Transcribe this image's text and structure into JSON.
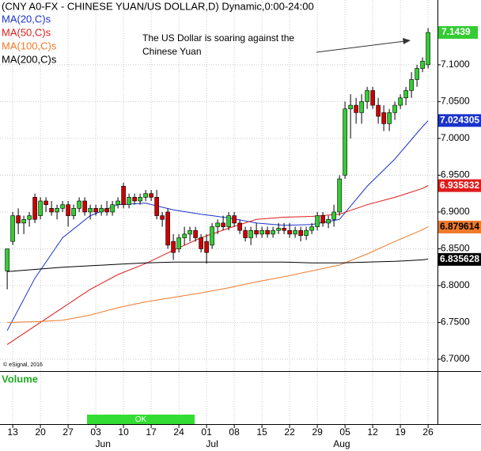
{
  "chart_data": {
    "type": "candlestick",
    "title": "(CNY A0-FX - CHINESE YUAN/US DOLLAR,D) Dynamic,0:00-24:00",
    "annotation": [
      "The US Dollar is soaring against the",
      "Chinese Yuan"
    ],
    "copyright": "© eSignal, 2016",
    "volume_label": "Volume",
    "volume_status": "OK",
    "up_color": "#33cc33",
    "down_color": "#cc0000",
    "grid": true,
    "ylim": [
      6.685,
      7.188
    ],
    "yticks": [
      {
        "value": 6.7,
        "label": "6.7000"
      },
      {
        "value": 6.75,
        "label": "6.7500"
      },
      {
        "value": 6.8,
        "label": "6.8000"
      },
      {
        "value": 6.85,
        "label": "6.8500"
      },
      {
        "value": 6.9,
        "label": "6.9000"
      },
      {
        "value": 6.95,
        "label": "6.9500"
      },
      {
        "value": 7.0,
        "label": "7.0000"
      },
      {
        "value": 7.05,
        "label": "7.0500"
      },
      {
        "value": 7.1,
        "label": "7.1000"
      }
    ],
    "xlim": [
      -1.3,
      77.7
    ],
    "xticks": [
      {
        "value": 1,
        "label": "13"
      },
      {
        "value": 6,
        "label": "20"
      },
      {
        "value": 11,
        "label": "27"
      },
      {
        "value": 16,
        "label": "03"
      },
      {
        "value": 21,
        "label": "10"
      },
      {
        "value": 26,
        "label": "17"
      },
      {
        "value": 31,
        "label": "24"
      },
      {
        "value": 36,
        "label": "01"
      },
      {
        "value": 41,
        "label": "08"
      },
      {
        "value": 46,
        "label": "15"
      },
      {
        "value": 51,
        "label": "22"
      },
      {
        "value": 56,
        "label": "29"
      },
      {
        "value": 61,
        "label": "05"
      },
      {
        "value": 66,
        "label": "12"
      },
      {
        "value": 71,
        "label": "19"
      },
      {
        "value": 76,
        "label": "26"
      }
    ],
    "month_labels": [
      {
        "value": 17.3,
        "label": "Jun"
      },
      {
        "value": 37,
        "label": "Jul"
      },
      {
        "value": 60.4,
        "label": "Aug"
      }
    ],
    "open": [
      6.82,
      6.86,
      6.895,
      6.885,
      6.89,
      6.92,
      6.895,
      6.915,
      6.905,
      6.9,
      6.905,
      6.91,
      6.895,
      6.905,
      6.915,
      6.9,
      6.905,
      6.9,
      6.905,
      6.9,
      6.91,
      6.935,
      6.91,
      6.92,
      6.915,
      6.92,
      6.925,
      6.92,
      6.895,
      6.9,
      6.86,
      6.85,
      6.865,
      6.87,
      6.875,
      6.865,
      6.86,
      6.855,
      6.88,
      6.885,
      6.88,
      6.895,
      6.885,
      6.875,
      6.865,
      6.875,
      6.87,
      6.875,
      6.87,
      6.875,
      6.878,
      6.875,
      6.87,
      6.875,
      6.868,
      6.875,
      6.88,
      6.895,
      6.885,
      6.89,
      6.9,
      6.95,
      7.04,
      7.045,
      7.035,
      7.05,
      7.065,
      7.045,
      7.035,
      7.02,
      7.035,
      7.045,
      7.055,
      7.065,
      7.08,
      7.095,
      7.1
    ],
    "high": [
      6.85,
      6.9,
      6.905,
      6.895,
      6.9,
      6.925,
      6.92,
      6.92,
      6.915,
      6.91,
      6.915,
      6.915,
      6.91,
      6.92,
      6.92,
      6.91,
      6.91,
      6.91,
      6.915,
      6.915,
      6.92,
      6.94,
      6.925,
      6.925,
      6.925,
      6.93,
      6.93,
      6.93,
      6.9,
      6.905,
      6.87,
      6.87,
      6.88,
      6.88,
      6.88,
      6.87,
      6.87,
      6.885,
      6.89,
      6.895,
      6.9,
      6.9,
      6.89,
      6.88,
      6.88,
      6.885,
      6.88,
      6.88,
      6.88,
      6.885,
      6.885,
      6.885,
      6.88,
      6.88,
      6.88,
      6.885,
      6.9,
      6.9,
      6.895,
      6.91,
      6.95,
      7.05,
      7.06,
      7.055,
      7.06,
      7.07,
      7.07,
      7.055,
      7.045,
      7.04,
      7.05,
      7.06,
      7.07,
      7.09,
      7.1,
      7.11,
      7.15
    ],
    "low": [
      6.795,
      6.855,
      6.87,
      6.87,
      6.88,
      6.885,
      6.89,
      6.9,
      6.895,
      6.89,
      6.9,
      6.88,
      6.89,
      6.9,
      6.895,
      6.89,
      6.895,
      6.895,
      6.895,
      6.895,
      6.905,
      6.905,
      6.905,
      6.91,
      6.91,
      6.915,
      6.915,
      6.89,
      6.88,
      6.85,
      6.835,
      6.845,
      6.855,
      6.86,
      6.86,
      6.845,
      6.83,
      6.85,
      6.87,
      6.875,
      6.875,
      6.88,
      6.87,
      6.86,
      6.855,
      6.865,
      6.865,
      6.865,
      6.865,
      6.87,
      6.87,
      6.865,
      6.865,
      6.86,
      6.862,
      6.87,
      6.875,
      6.88,
      6.878,
      6.88,
      6.895,
      6.945,
      7.0,
      7.02,
      7.02,
      7.04,
      7.04,
      7.02,
      7.01,
      7.01,
      7.025,
      7.04,
      7.045,
      7.055,
      7.07,
      7.09,
      7.095
    ],
    "close": [
      6.85,
      6.895,
      6.885,
      6.89,
      6.895,
      6.89,
      6.915,
      6.91,
      6.9,
      6.905,
      6.91,
      6.895,
      6.905,
      6.915,
      6.9,
      6.905,
      6.9,
      6.905,
      6.9,
      6.91,
      6.915,
      6.91,
      6.92,
      6.915,
      6.92,
      6.925,
      6.92,
      6.895,
      6.89,
      6.855,
      6.845,
      6.865,
      6.87,
      6.875,
      6.865,
      6.85,
      6.845,
      6.88,
      6.885,
      6.88,
      6.895,
      6.885,
      6.875,
      6.865,
      6.875,
      6.87,
      6.875,
      6.87,
      6.875,
      6.878,
      6.875,
      6.87,
      6.875,
      6.868,
      6.875,
      6.88,
      6.895,
      6.885,
      6.89,
      6.9,
      6.945,
      7.04,
      7.045,
      7.035,
      7.05,
      7.065,
      7.045,
      7.03,
      7.02,
      7.035,
      7.045,
      7.055,
      7.065,
      7.08,
      7.095,
      7.105,
      7.1439
    ],
    "series": [
      {
        "name": "MA(20,C)s",
        "color": "#1a33cc",
        "label_color": "#ffffff",
        "last_value": 7.024305,
        "x": [
          0,
          5,
          10,
          15,
          20,
          25,
          30,
          35,
          40,
          45,
          50,
          55,
          60,
          65,
          70,
          75,
          76
        ],
        "values": [
          6.739,
          6.81,
          6.865,
          6.895,
          6.91,
          6.912,
          6.903,
          6.897,
          6.892,
          6.885,
          6.882,
          6.883,
          6.89,
          6.935,
          6.972,
          7.016,
          7.024
        ]
      },
      {
        "name": "MA(50,C)s",
        "color": "#dd1c1c",
        "label_color": "#ffffff",
        "last_value": 6.935832,
        "x": [
          0,
          5,
          10,
          15,
          20,
          25,
          30,
          35,
          40,
          45,
          50,
          55,
          60,
          65,
          70,
          75,
          76
        ],
        "values": [
          6.72,
          6.745,
          6.77,
          6.795,
          6.815,
          6.83,
          6.848,
          6.865,
          6.878,
          6.89,
          6.893,
          6.894,
          6.897,
          6.91,
          6.92,
          6.932,
          6.936
        ]
      },
      {
        "name": "MA(100,C)s",
        "color": "#f07a2a",
        "label_color": "#000000",
        "last_value": 6.879614,
        "x": [
          0,
          5,
          10,
          15,
          20,
          25,
          30,
          35,
          40,
          45,
          50,
          55,
          60,
          65,
          70,
          75,
          76
        ],
        "values": [
          6.75,
          6.751,
          6.753,
          6.76,
          6.77,
          6.778,
          6.784,
          6.79,
          6.797,
          6.805,
          6.812,
          6.82,
          6.828,
          6.843,
          6.86,
          6.876,
          6.88
        ]
      },
      {
        "name": "MA(200,C)s",
        "color": "#000000",
        "label_color": "#ffffff",
        "last_value": 6.835628,
        "x": [
          0,
          5,
          10,
          15,
          20,
          25,
          30,
          35,
          40,
          45,
          50,
          55,
          60,
          65,
          70,
          75,
          76
        ],
        "values": [
          6.819,
          6.822,
          6.825,
          6.827,
          6.829,
          6.831,
          6.832,
          6.832,
          6.832,
          6.832,
          6.832,
          6.831,
          6.831,
          6.832,
          6.833,
          6.835,
          6.836
        ]
      }
    ]
  }
}
